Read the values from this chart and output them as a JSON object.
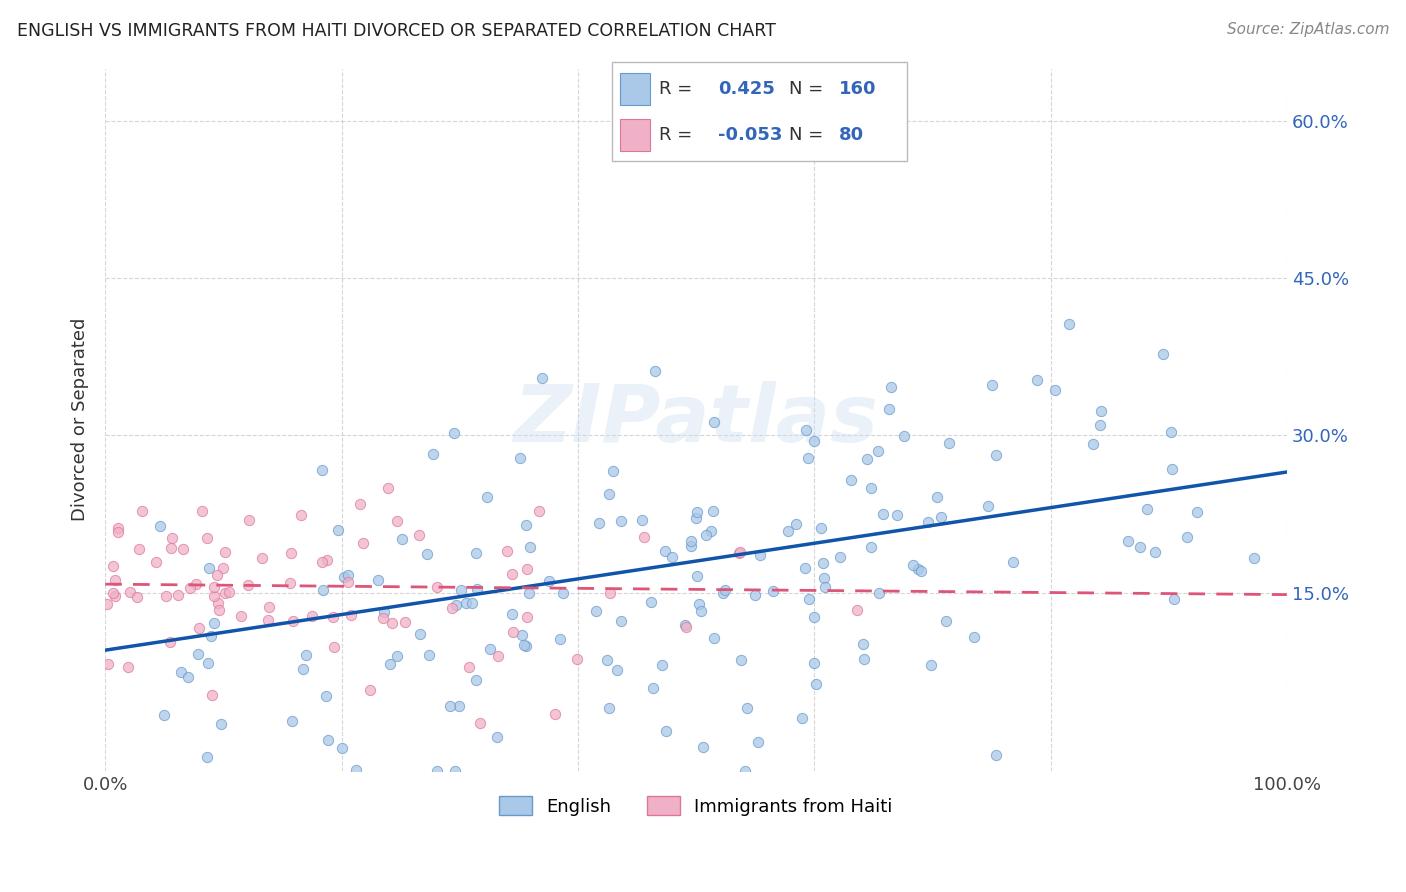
{
  "title": "ENGLISH VS IMMIGRANTS FROM HAITI DIVORCED OR SEPARATED CORRELATION CHART",
  "source": "Source: ZipAtlas.com",
  "ylabel": "Divorced or Separated",
  "watermark": "ZIPatlas",
  "xlim": [
    0.0,
    1.0
  ],
  "ylim": [
    -0.02,
    0.65
  ],
  "xticks": [
    0.0,
    0.2,
    0.4,
    0.6,
    0.8,
    1.0
  ],
  "xticklabels": [
    "0.0%",
    "",
    "",
    "",
    "",
    "100.0%"
  ],
  "yticks": [
    0.15,
    0.3,
    0.45,
    0.6
  ],
  "yticklabels": [
    "15.0%",
    "30.0%",
    "45.0%",
    "60.0%"
  ],
  "english_color": "#aac8e8",
  "english_edge": "#6699cc",
  "haiti_color": "#f0b0c8",
  "haiti_edge": "#dd7799",
  "trend_english_color": "#1155aa",
  "trend_haiti_color": "#dd5577",
  "legend_R_english": "0.425",
  "legend_N_english": "160",
  "legend_R_haiti": "-0.053",
  "legend_N_haiti": "80",
  "R_english": 0.425,
  "N_english": 160,
  "R_haiti": -0.053,
  "N_haiti": 80,
  "background_color": "#ffffff",
  "grid_color": "#cccccc",
  "english_seed": 42,
  "haiti_seed": 7,
  "english_trend_start_y": 0.095,
  "english_trend_end_y": 0.265,
  "haiti_trend_start_y": 0.158,
  "haiti_trend_end_y": 0.148,
  "tick_color": "#3366bb"
}
